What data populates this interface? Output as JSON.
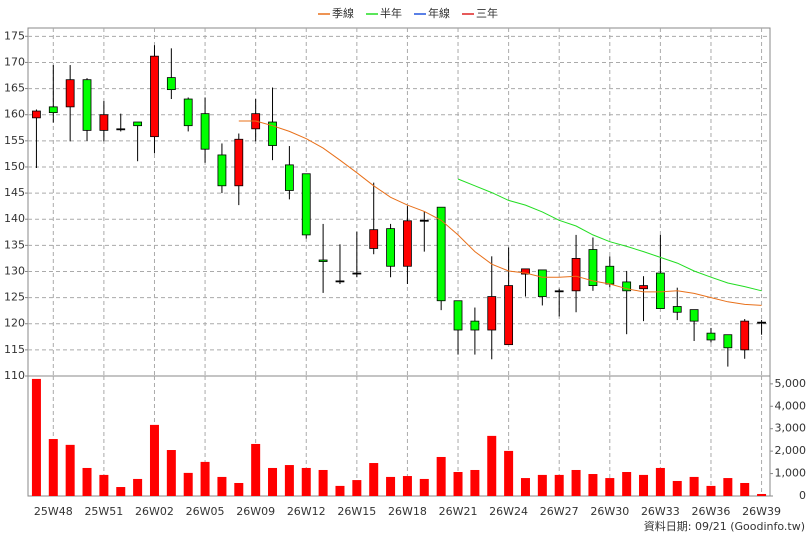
{
  "chart_data": {
    "type": "candlestick",
    "categories": [
      null,
      "25W48",
      null,
      null,
      "25W51",
      null,
      null,
      "26W02",
      null,
      null,
      "26W05",
      null,
      null,
      "26W09",
      null,
      null,
      "26W12",
      null,
      null,
      "26W15",
      null,
      null,
      "26W18",
      null,
      null,
      "26W21",
      null,
      null,
      "26W24",
      null,
      null,
      "26W27",
      null,
      null,
      "26W30",
      null,
      null,
      "26W33",
      null,
      null,
      "26W36",
      null,
      null,
      "26W39"
    ],
    "open": [
      159.4,
      161.5,
      161.5,
      166.7,
      157,
      157.3,
      158.6,
      155.8,
      167.1,
      163,
      160.2,
      152.3,
      146.4,
      157.3,
      158.6,
      150.4,
      148.7,
      132.2,
      128.2,
      129.7,
      134.4,
      138.2,
      131,
      139.8,
      142.3,
      124.4,
      120.5,
      118.8,
      116,
      129.5,
      130.3,
      126.3,
      126.3,
      134.2,
      131,
      128,
      126.7,
      129.7,
      123.3,
      122.7,
      118.2,
      117.9,
      115,
      120.3
    ],
    "high": [
      161,
      169.5,
      169.5,
      167,
      162.6,
      160.2,
      158.6,
      173.3,
      172.7,
      163.3,
      163.3,
      154.5,
      156.4,
      163,
      165.2,
      154,
      148.7,
      139.1,
      135.2,
      137.6,
      147,
      139.1,
      142.5,
      141.5,
      142.3,
      124.4,
      123.1,
      132.9,
      134.6,
      130.5,
      130.3,
      126.7,
      137,
      136.5,
      132.9,
      130.1,
      129.1,
      137,
      126.9,
      122.7,
      119.2,
      117.9,
      120.9,
      120.7
    ],
    "low": [
      149.8,
      158.5,
      154.9,
      155,
      154.9,
      156.8,
      151.1,
      152.6,
      163,
      156.8,
      150.8,
      145,
      142.7,
      154.9,
      151.3,
      143.8,
      136.3,
      125.9,
      127.6,
      128.9,
      133.3,
      128.9,
      127.6,
      133.8,
      122.6,
      114.1,
      114.1,
      113.2,
      116,
      125.2,
      123.5,
      121.4,
      122.2,
      126.3,
      127,
      118,
      120.5,
      122.9,
      120.7,
      116.7,
      116.4,
      111.8,
      113.3,
      117.9
    ],
    "close": [
      160.7,
      160.4,
      166.7,
      157,
      160,
      157.3,
      157.9,
      171.2,
      164.8,
      157.9,
      153.4,
      146.4,
      155.3,
      160.2,
      154.1,
      145.5,
      137,
      131.9,
      128.2,
      129.7,
      138,
      131,
      139.7,
      139.8,
      124.4,
      118.8,
      118.8,
      125.2,
      127.3,
      130.5,
      125.2,
      126.3,
      132.5,
      127.3,
      127.6,
      126.3,
      127.3,
      122.9,
      122.2,
      120.5,
      116.9,
      115.4,
      120.5,
      120.3
    ],
    "up_color": "#ff0000",
    "down_color": "#00ff00",
    "series": [
      {
        "name": "季線",
        "color": "#e8701a",
        "values": [
          null,
          null,
          null,
          null,
          null,
          null,
          null,
          null,
          null,
          null,
          null,
          null,
          158.8,
          158.8,
          157.9,
          156.8,
          155.4,
          153.6,
          151.3,
          148.9,
          146.4,
          144.2,
          142.7,
          141.5,
          139.8,
          137,
          133.8,
          131.4,
          130.1,
          129.7,
          128.9,
          128.9,
          129.1,
          128.2,
          127.6,
          126.7,
          126.1,
          126.1,
          126.3,
          125.8,
          125,
          124.2,
          123.7,
          123.5
        ]
      },
      {
        "name": "半年",
        "color": "#22dd22",
        "values": [
          null,
          null,
          null,
          null,
          null,
          null,
          null,
          null,
          null,
          null,
          null,
          null,
          null,
          null,
          null,
          null,
          null,
          null,
          null,
          null,
          null,
          null,
          null,
          null,
          null,
          147.7,
          146.4,
          145.1,
          143.6,
          142.7,
          141.4,
          139.8,
          138.7,
          137,
          135.7,
          134.8,
          133.8,
          132.7,
          131.6,
          130.1,
          128.9,
          127.8,
          127.1,
          126.3
        ]
      },
      {
        "name": "年線",
        "color": "#2255dd",
        "values": [
          null,
          null,
          null,
          null,
          null,
          null,
          null,
          null,
          null,
          null,
          null,
          null,
          null,
          null,
          null,
          null,
          null,
          null,
          null,
          null,
          null,
          null,
          null,
          null,
          null,
          null,
          null,
          null,
          null,
          null,
          null,
          null,
          null,
          null,
          null,
          null,
          null,
          null,
          null,
          null,
          null,
          null,
          null,
          null
        ]
      },
      {
        "name": "三年",
        "color": "#dd2222",
        "values": [
          null,
          null,
          null,
          null,
          null,
          null,
          null,
          null,
          null,
          null,
          null,
          null,
          null,
          null,
          null,
          null,
          null,
          null,
          null,
          null,
          null,
          null,
          null,
          null,
          null,
          null,
          null,
          null,
          null,
          null,
          null,
          null,
          null,
          null,
          null,
          null,
          null,
          null,
          null,
          null,
          null,
          null,
          null,
          null
        ]
      }
    ],
    "ylim": [
      110,
      175.5
    ],
    "yticks": [
      110,
      115,
      120,
      125,
      130,
      135,
      140,
      145,
      150,
      155,
      160,
      165,
      170,
      175
    ],
    "grid": true,
    "volume": {
      "color": "#ff0000",
      "values": [
        5220,
        2540,
        2280,
        1250,
        940,
        400,
        760,
        3170,
        2050,
        1030,
        1520,
        850,
        580,
        2320,
        1250,
        1380,
        1250,
        1160,
        450,
        710,
        1470,
        850,
        890,
        760,
        1740,
        1070,
        1160,
        2680,
        2010,
        800,
        940,
        940,
        1160,
        980,
        800,
        1070,
        940,
        1250,
        670,
        850,
        450,
        800,
        580,
        90
      ],
      "ylim": [
        0,
        5350
      ],
      "yticks": [
        0,
        {
          "value": 1000,
          "label": "1,000"
        },
        {
          "value": 2000,
          "label": "2,000"
        },
        {
          "value": 3000,
          "label": "3,000"
        },
        {
          "value": 4000,
          "label": "4,000"
        },
        {
          "value": 5000,
          "label": "5,000"
        }
      ]
    },
    "footnote": "資料日期: 09/21  (Goodinfo.tw)"
  }
}
